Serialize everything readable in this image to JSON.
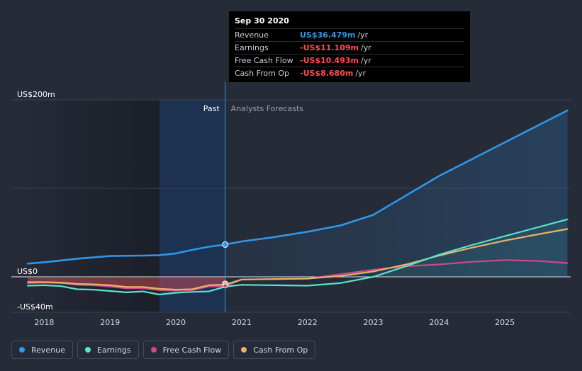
{
  "chart_data": {
    "type": "line",
    "title": "",
    "xlabel": "",
    "ylabel": "",
    "ylim": [
      -40,
      200
    ],
    "x_range": [
      2017.5,
      2026.0
    ],
    "x_ticks": [
      2018,
      2019,
      2020,
      2021,
      2022,
      2023,
      2024,
      2025
    ],
    "y_labels": [
      {
        "value": 200,
        "label": "US$200m"
      },
      {
        "value": 0,
        "label": "US$0"
      },
      {
        "value": -40,
        "label": "-US$40m"
      }
    ],
    "grid_values": [
      200,
      100,
      0,
      -40
    ],
    "past_label": "Past",
    "forecast_label": "Analysts Forecasts",
    "divider_x": 2020.75,
    "series": [
      {
        "name": "Revenue",
        "color": "#2f96e8",
        "points": [
          [
            2017.75,
            15
          ],
          [
            2018.0,
            16.5
          ],
          [
            2018.5,
            20.5
          ],
          [
            2019.0,
            23.5
          ],
          [
            2019.5,
            24
          ],
          [
            2019.75,
            24.5
          ],
          [
            2020.0,
            26.5
          ],
          [
            2020.25,
            30.5
          ],
          [
            2020.5,
            34
          ],
          [
            2020.75,
            36.479
          ],
          [
            2021.0,
            40
          ],
          [
            2021.5,
            45
          ],
          [
            2022.0,
            51
          ],
          [
            2022.5,
            58
          ],
          [
            2023.0,
            70
          ],
          [
            2023.5,
            92
          ],
          [
            2024.0,
            114
          ],
          [
            2024.5,
            133
          ],
          [
            2025.0,
            152
          ],
          [
            2025.5,
            171
          ],
          [
            2025.95,
            188
          ]
        ]
      },
      {
        "name": "Earnings",
        "color": "#58e5cf",
        "points": [
          [
            2017.75,
            -10
          ],
          [
            2018.0,
            -9.5
          ],
          [
            2018.25,
            -10.5
          ],
          [
            2018.5,
            -14
          ],
          [
            2018.75,
            -14.5
          ],
          [
            2019.0,
            -16
          ],
          [
            2019.25,
            -17.5
          ],
          [
            2019.5,
            -16.5
          ],
          [
            2019.75,
            -20
          ],
          [
            2020.0,
            -18
          ],
          [
            2020.25,
            -17
          ],
          [
            2020.5,
            -16.5
          ],
          [
            2020.75,
            -11.109
          ],
          [
            2021.0,
            -9
          ],
          [
            2021.5,
            -9.5
          ],
          [
            2022.0,
            -10
          ],
          [
            2022.5,
            -7
          ],
          [
            2023.0,
            0
          ],
          [
            2023.5,
            12
          ],
          [
            2024.0,
            25
          ],
          [
            2024.5,
            36
          ],
          [
            2025.0,
            46
          ],
          [
            2025.5,
            56
          ],
          [
            2025.95,
            65
          ]
        ]
      },
      {
        "name": "Free Cash Flow",
        "color": "#c94b8a",
        "points": [
          [
            2017.75,
            -7
          ],
          [
            2018.0,
            -6.5
          ],
          [
            2018.25,
            -7
          ],
          [
            2018.5,
            -9
          ],
          [
            2018.75,
            -9.5
          ],
          [
            2019.0,
            -11
          ],
          [
            2019.25,
            -13
          ],
          [
            2019.5,
            -13
          ],
          [
            2019.75,
            -15
          ],
          [
            2020.0,
            -15.5
          ],
          [
            2020.25,
            -15
          ],
          [
            2020.5,
            -11
          ],
          [
            2020.75,
            -10.493
          ],
          [
            2021.0,
            -3
          ],
          [
            2021.5,
            -2.5
          ],
          [
            2022.0,
            -2
          ],
          [
            2022.5,
            3
          ],
          [
            2023.0,
            8
          ],
          [
            2023.5,
            12
          ],
          [
            2024.0,
            14
          ],
          [
            2024.5,
            17
          ],
          [
            2025.0,
            19
          ],
          [
            2025.5,
            18
          ],
          [
            2025.95,
            15.5
          ]
        ]
      },
      {
        "name": "Cash From Op",
        "color": "#e8b267",
        "points": [
          [
            2017.75,
            -6
          ],
          [
            2018.0,
            -6
          ],
          [
            2018.25,
            -6.5
          ],
          [
            2018.5,
            -8
          ],
          [
            2018.75,
            -8.5
          ],
          [
            2019.0,
            -9.5
          ],
          [
            2019.25,
            -11.5
          ],
          [
            2019.5,
            -11.5
          ],
          [
            2019.75,
            -13.5
          ],
          [
            2020.0,
            -14.5
          ],
          [
            2020.25,
            -14
          ],
          [
            2020.5,
            -9.5
          ],
          [
            2020.75,
            -8.68
          ],
          [
            2021.0,
            -3
          ],
          [
            2021.5,
            -2.5
          ],
          [
            2022.0,
            -2
          ],
          [
            2022.5,
            1
          ],
          [
            2023.0,
            6
          ],
          [
            2023.5,
            14
          ],
          [
            2024.0,
            24
          ],
          [
            2024.5,
            33
          ],
          [
            2025.0,
            41
          ],
          [
            2025.5,
            48
          ],
          [
            2025.95,
            54
          ]
        ]
      }
    ],
    "highlight": {
      "x": 2020.75,
      "revenue": 36.479,
      "cash_from_op": -8.68
    }
  },
  "tooltip": {
    "date": "Sep 30 2020",
    "rows": [
      {
        "label": "Revenue",
        "value": "US$36.479m",
        "unit": "/yr",
        "color": "#2f96e8"
      },
      {
        "label": "Earnings",
        "value": "-US$11.109m",
        "unit": "/yr",
        "color": "#ff4d4d"
      },
      {
        "label": "Free Cash Flow",
        "value": "-US$10.493m",
        "unit": "/yr",
        "color": "#ff4d4d"
      },
      {
        "label": "Cash From Op",
        "value": "-US$8.680m",
        "unit": "/yr",
        "color": "#ff4d4d"
      }
    ]
  },
  "legend": [
    {
      "label": "Revenue",
      "color": "#2f96e8"
    },
    {
      "label": "Earnings",
      "color": "#58e5cf"
    },
    {
      "label": "Free Cash Flow",
      "color": "#c94b8a"
    },
    {
      "label": "Cash From Op",
      "color": "#e8b267"
    }
  ]
}
